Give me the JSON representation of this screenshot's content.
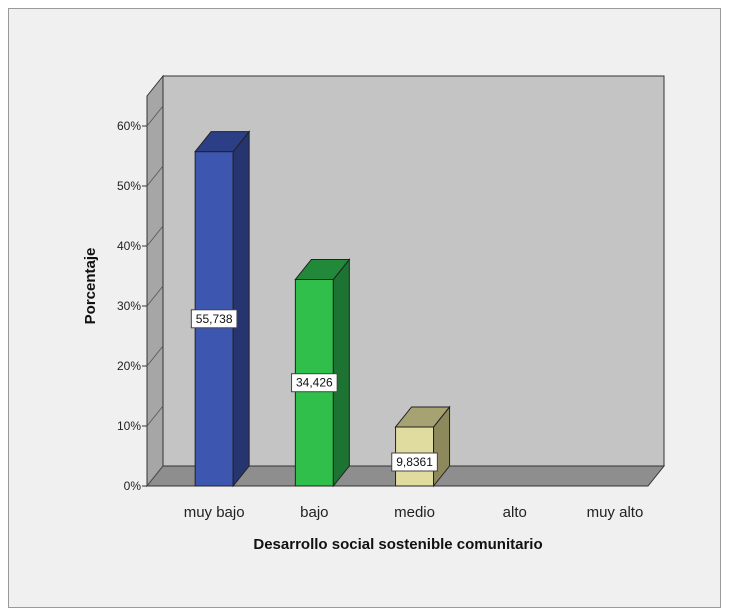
{
  "chart_data": {
    "type": "bar",
    "style": "3d",
    "title": "",
    "xlabel": "Desarrollo social sostenible comunitario",
    "ylabel": "Porcentaje",
    "categories": [
      "muy bajo",
      "bajo",
      "medio",
      "alto",
      "muy alto"
    ],
    "values": [
      55.738,
      34.426,
      9.8361,
      0,
      0
    ],
    "data_labels": [
      "55,738",
      "34,426",
      "9,8361",
      "",
      ""
    ],
    "yticks": [
      "0%",
      "10%",
      "20%",
      "30%",
      "40%",
      "50%",
      "60%"
    ],
    "ylim": [
      0,
      60
    ],
    "grid": false,
    "legend": "none",
    "colors": {
      "bars": [
        "#3d57b0",
        "#2fbf4a",
        "#e0dca0",
        "#cccccc",
        "#cccccc"
      ],
      "bar_tops": [
        "#2c3f86",
        "#22893a",
        "#a7a272",
        "#cccccc",
        "#cccccc"
      ],
      "bar_sides": [
        "#263470",
        "#1d7331",
        "#8d895d",
        "#cccccc",
        "#cccccc"
      ],
      "wall": "#c4c4c4",
      "side_wall": "#a6a6a6",
      "floor": "#8e8e8e"
    }
  }
}
